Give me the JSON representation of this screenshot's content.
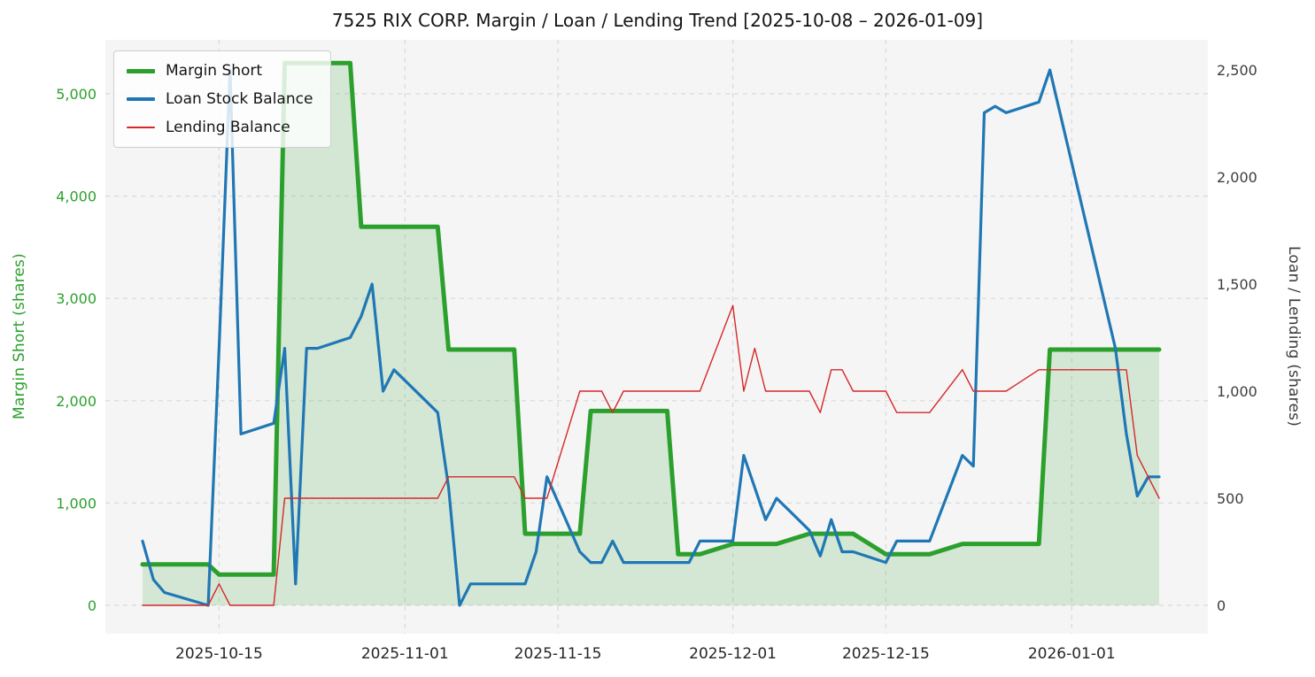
{
  "chart_data": {
    "type": "line",
    "title": "7525 RIX CORP. Margin / Loan / Lending Trend [2025-10-08 – 2026-01-09]",
    "ylabel_left": "Margin Short (shares)",
    "ylabel_right": "Loan / Lending (shares)",
    "plot_bg": "#f5f5f6",
    "grid": {
      "color": "#d9d9d9",
      "dash": "5 5",
      "on": true
    },
    "legend_position": "upper left",
    "x_range": [
      "2025-10-08",
      "2026-01-09"
    ],
    "x_tick_labels": [
      "2025-10-15",
      "2025-11-01",
      "2025-11-15",
      "2025-12-01",
      "2025-12-15",
      "2026-01-01"
    ],
    "y_left": {
      "color": "#2ca02c",
      "range": [
        0,
        5530
      ],
      "ticks": [
        0,
        1000,
        2000,
        3000,
        4000,
        5000
      ],
      "labels": [
        "0",
        "1,000",
        "2,000",
        "3,000",
        "4,000",
        "5,000"
      ]
    },
    "y_right": {
      "color": "#3d3d3d",
      "range": [
        0,
        2640
      ],
      "ticks": [
        0,
        500,
        1000,
        1500,
        2000,
        2500
      ],
      "labels": [
        "0",
        "500",
        "1,000",
        "1,500",
        "2,000",
        "2,500"
      ]
    },
    "dates": [
      "2025-10-08",
      "2025-10-09",
      "2025-10-10",
      "2025-10-14",
      "2025-10-15",
      "2025-10-16",
      "2025-10-17",
      "2025-10-20",
      "2025-10-21",
      "2025-10-22",
      "2025-10-23",
      "2025-10-24",
      "2025-10-27",
      "2025-10-28",
      "2025-10-29",
      "2025-10-30",
      "2025-10-31",
      "2025-11-04",
      "2025-11-05",
      "2025-11-06",
      "2025-11-07",
      "2025-11-10",
      "2025-11-11",
      "2025-11-12",
      "2025-11-13",
      "2025-11-14",
      "2025-11-17",
      "2025-11-18",
      "2025-11-19",
      "2025-11-20",
      "2025-11-21",
      "2025-11-25",
      "2025-11-26",
      "2025-11-27",
      "2025-11-28",
      "2025-12-01",
      "2025-12-02",
      "2025-12-03",
      "2025-12-04",
      "2025-12-05",
      "2025-12-08",
      "2025-12-09",
      "2025-12-10",
      "2025-12-11",
      "2025-12-12",
      "2025-12-15",
      "2025-12-16",
      "2025-12-17",
      "2025-12-18",
      "2025-12-19",
      "2025-12-22",
      "2025-12-23",
      "2025-12-24",
      "2025-12-25",
      "2025-12-26",
      "2025-12-29",
      "2025-12-30",
      "2026-01-05",
      "2026-01-06",
      "2026-01-07",
      "2026-01-08",
      "2026-01-09"
    ],
    "series": [
      {
        "name": "Margin Short",
        "axis": "left",
        "color": "#2ca02c",
        "width": 5,
        "fill": "rgba(44,160,44,0.16)",
        "values": [
          400,
          400,
          400,
          400,
          300,
          300,
          300,
          300,
          5300,
          5300,
          5300,
          5300,
          5300,
          3700,
          3700,
          3700,
          3700,
          3700,
          2500,
          2500,
          2500,
          2500,
          2500,
          700,
          700,
          700,
          700,
          1900,
          1900,
          1900,
          1900,
          1900,
          500,
          500,
          500,
          600,
          600,
          600,
          600,
          600,
          700,
          700,
          700,
          700,
          700,
          500,
          500,
          500,
          500,
          500,
          600,
          600,
          600,
          600,
          600,
          600,
          2500,
          2500,
          2500,
          2500,
          2500,
          2500
        ]
      },
      {
        "name": "Loan Stock Balance",
        "axis": "right",
        "color": "#1f77b4",
        "width": 3.2,
        "fill": null,
        "values": [
          300,
          120,
          60,
          0,
          1200,
          2500,
          800,
          850,
          1200,
          100,
          1200,
          1200,
          1250,
          1350,
          1500,
          1000,
          1100,
          900,
          550,
          0,
          100,
          100,
          100,
          100,
          250,
          600,
          250,
          200,
          200,
          300,
          200,
          200,
          200,
          200,
          300,
          300,
          700,
          550,
          400,
          500,
          350,
          230,
          400,
          250,
          250,
          200,
          300,
          300,
          300,
          300,
          700,
          650,
          2300,
          2330,
          2300,
          2350,
          2500,
          1200,
          800,
          510,
          600,
          600
        ]
      },
      {
        "name": "Lending Balance",
        "axis": "right",
        "color": "#d62728",
        "width": 1.4,
        "fill": null,
        "values": [
          0,
          0,
          0,
          0,
          100,
          0,
          0,
          0,
          500,
          500,
          500,
          500,
          500,
          500,
          500,
          500,
          500,
          500,
          600,
          600,
          600,
          600,
          600,
          500,
          500,
          500,
          1000,
          1000,
          1000,
          900,
          1000,
          1000,
          1000,
          1000,
          1000,
          1400,
          1000,
          1200,
          1000,
          1000,
          1000,
          900,
          1100,
          1100,
          1000,
          1000,
          900,
          900,
          900,
          900,
          1100,
          1000,
          1000,
          1000,
          1000,
          1100,
          1100,
          1100,
          1100,
          700,
          600,
          500
        ]
      }
    ]
  }
}
